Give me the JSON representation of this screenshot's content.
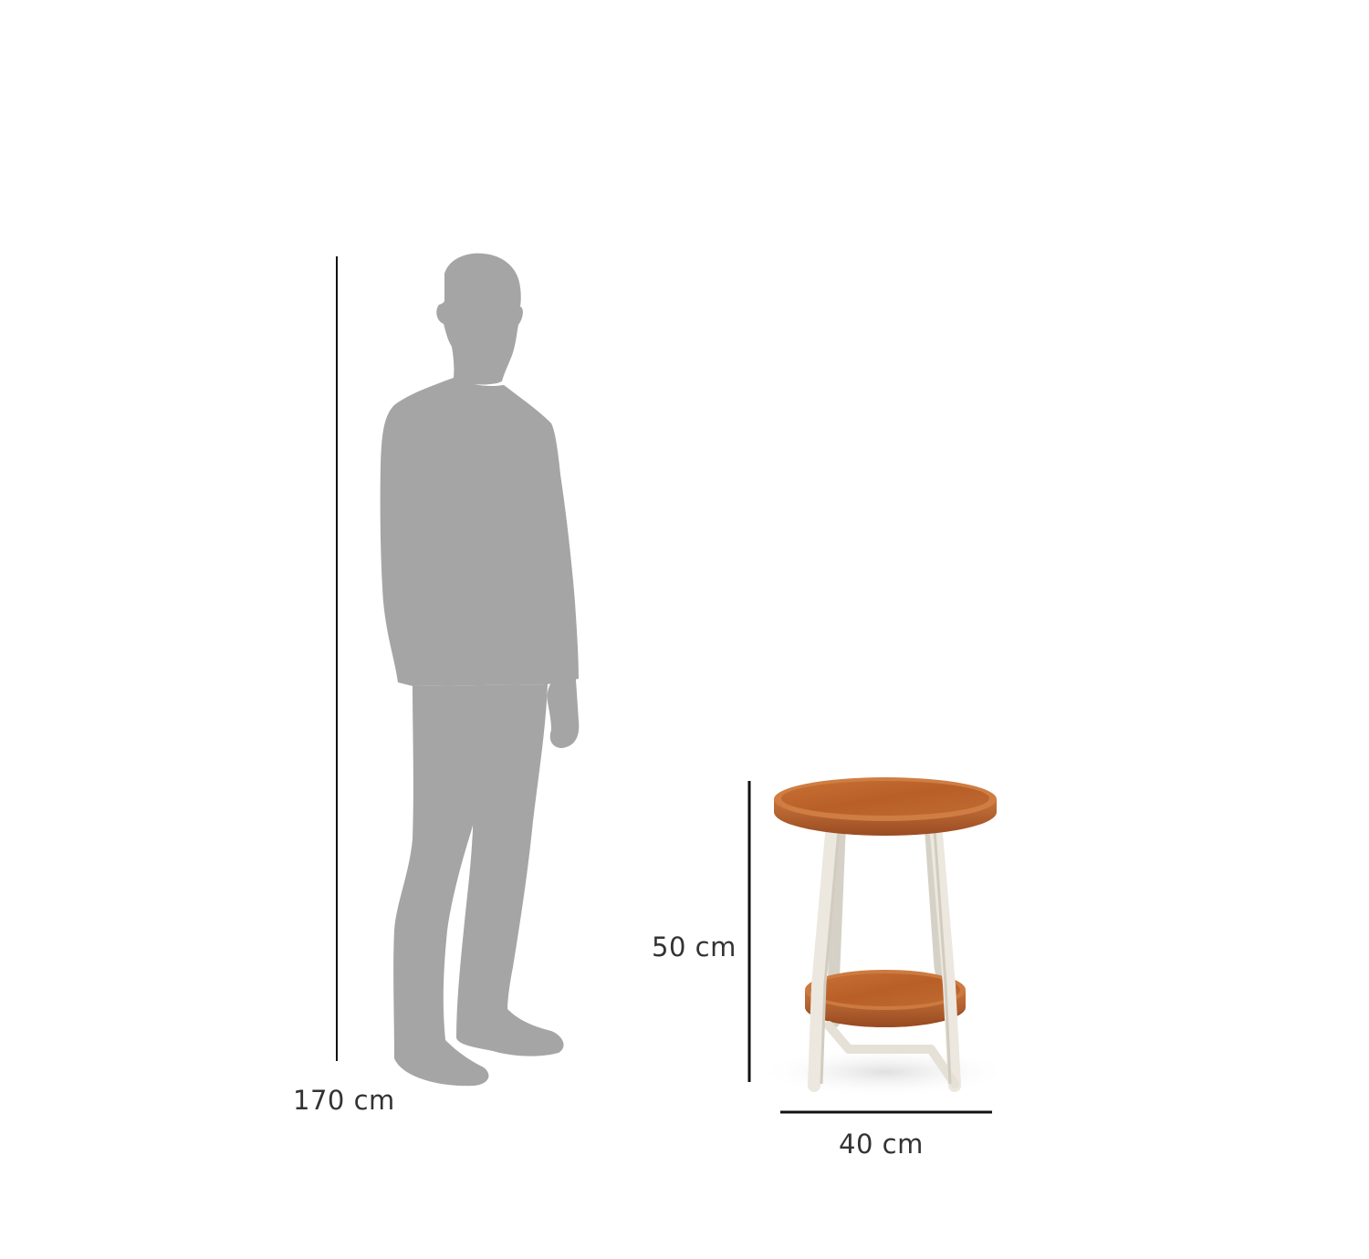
{
  "dimensions": {
    "person_height": "170 cm",
    "table_height": "50 cm",
    "table_width": "40 cm"
  },
  "colors": {
    "silhouette": "#a5a5a5",
    "dimension_line": "#111111",
    "label_text": "#333333",
    "wood": "#c0652f",
    "wood_light": "#c9743c",
    "wood_dark": "#8c451e",
    "frame": "#ece8df",
    "background": "#ffffff"
  },
  "icons": {
    "person": "person-silhouette-icon",
    "table": "side-table-icon"
  }
}
